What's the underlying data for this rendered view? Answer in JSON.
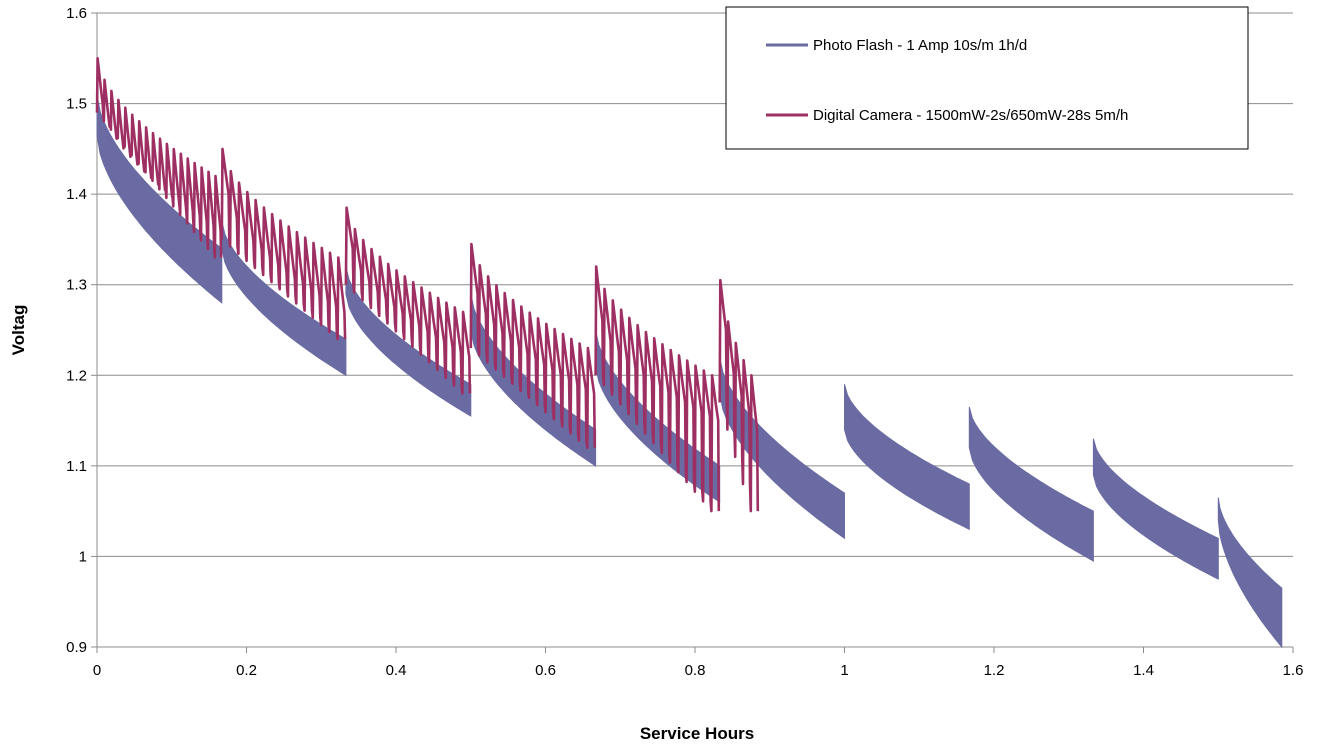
{
  "chart_data": {
    "type": "line",
    "title": "",
    "xlabel": "Service Hours",
    "ylabel": "Voltag",
    "xlim": [
      0,
      1.6
    ],
    "ylim": [
      0.9,
      1.6
    ],
    "x_ticks": [
      0,
      0.2,
      0.4,
      0.6,
      0.8,
      1,
      1.2,
      1.4,
      1.6
    ],
    "x_tick_labels": [
      "0",
      "0.2",
      "0.4",
      "0.6",
      "0.8",
      "1",
      "1.2",
      "1.4",
      "1.6"
    ],
    "y_ticks": [
      0.9,
      1,
      1.1,
      1.2,
      1.3,
      1.4,
      1.5,
      1.6
    ],
    "y_tick_labels": [
      "0.9",
      "1",
      "1.1",
      "1.2",
      "1.3",
      "1.4",
      "1.5",
      "1.6"
    ],
    "grid": "horizontal",
    "legend_position": "top-right",
    "series": [
      {
        "name": "Photo Flash - 1 Amp 10s/m 1h/d",
        "color": "#6b6ba3",
        "style": "dense-band",
        "segments": [
          {
            "x_start": 0.0,
            "x_end": 0.167,
            "upper": [
              1.51,
              1.34
            ],
            "lower": [
              1.465,
              1.28
            ]
          },
          {
            "x_start": 0.167,
            "x_end": 0.333,
            "upper": [
              1.37,
              1.24
            ],
            "lower": [
              1.34,
              1.2
            ]
          },
          {
            "x_start": 0.333,
            "x_end": 0.5,
            "upper": [
              1.32,
              1.19
            ],
            "lower": [
              1.29,
              1.155
            ]
          },
          {
            "x_start": 0.5,
            "x_end": 0.667,
            "upper": [
              1.29,
              1.14
            ],
            "lower": [
              1.25,
              1.1
            ]
          },
          {
            "x_start": 0.667,
            "x_end": 0.833,
            "upper": [
              1.25,
              1.1
            ],
            "lower": [
              1.21,
              1.06
            ]
          },
          {
            "x_start": 0.833,
            "x_end": 1.0,
            "upper": [
              1.22,
              1.07
            ],
            "lower": [
              1.18,
              1.02
            ]
          },
          {
            "x_start": 1.0,
            "x_end": 1.167,
            "upper": [
              1.19,
              1.08
            ],
            "lower": [
              1.14,
              1.03
            ]
          },
          {
            "x_start": 1.167,
            "x_end": 1.333,
            "upper": [
              1.165,
              1.05
            ],
            "lower": [
              1.12,
              0.995
            ]
          },
          {
            "x_start": 1.333,
            "x_end": 1.5,
            "upper": [
              1.13,
              1.02
            ],
            "lower": [
              1.09,
              0.975
            ]
          },
          {
            "x_start": 1.5,
            "x_end": 1.585,
            "upper": [
              1.065,
              0.965
            ],
            "lower": [
              1.04,
              0.9
            ]
          }
        ]
      },
      {
        "name": "Digital Camera - 1500mW-2s/650mW-28s 5m/h",
        "color": "#9e2f63",
        "style": "sawtooth",
        "segments": [
          {
            "x_start": 0.0,
            "x_end": 0.167,
            "cycles": 18,
            "peak": [
              1.55,
              1.42
            ],
            "trough": [
              1.5,
              1.36
            ],
            "bottom": [
              1.49,
              1.33
            ]
          },
          {
            "x_start": 0.167,
            "x_end": 0.333,
            "cycles": 15,
            "peak": [
              1.45,
              1.33
            ],
            "trough": [
              1.4,
              1.27
            ],
            "bottom": [
              1.35,
              1.24
            ]
          },
          {
            "x_start": 0.333,
            "x_end": 0.5,
            "cycles": 15,
            "peak": [
              1.385,
              1.27
            ],
            "trough": [
              1.34,
              1.22
            ],
            "bottom": [
              1.3,
              1.18
            ]
          },
          {
            "x_start": 0.5,
            "x_end": 0.667,
            "cycles": 15,
            "peak": [
              1.345,
              1.23
            ],
            "trough": [
              1.29,
              1.18
            ],
            "bottom": [
              1.23,
              1.12
            ]
          },
          {
            "x_start": 0.667,
            "x_end": 0.833,
            "cycles": 15,
            "peak": [
              1.32,
              1.2
            ],
            "trough": [
              1.26,
              1.15
            ],
            "bottom": [
              1.2,
              1.05
            ]
          },
          {
            "x_start": 0.833,
            "x_end": 0.885,
            "cycles": 5,
            "peak": [
              1.305,
              1.2
            ],
            "trough": [
              1.25,
              1.14
            ],
            "bottom": [
              1.17,
              1.05
            ]
          }
        ]
      }
    ]
  }
}
